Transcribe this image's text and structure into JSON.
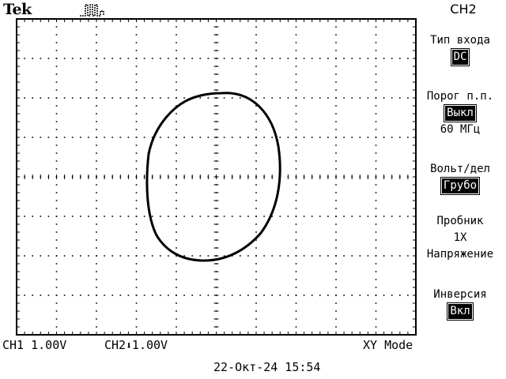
{
  "header": {
    "brand": "Tek"
  },
  "icons": {
    "trigger": "pulse-trigger-icon",
    "ground": "ground-arrow-icon"
  },
  "menu": {
    "title": "CH2",
    "items": [
      {
        "label": "Тип входа",
        "value": "DC",
        "value_highlight": true
      },
      {
        "label": "Порог п.п.",
        "value": "Выкл",
        "value_highlight": true,
        "extra": "60 МГц"
      },
      {
        "label": "Вольт/дел",
        "value": "Грубо",
        "value_highlight": true
      },
      {
        "label": "Пробник",
        "value": "1X",
        "value_highlight": false,
        "extra": "Напряжение"
      },
      {
        "label": "Инверсия",
        "value": "Вкл",
        "value_highlight": true
      }
    ]
  },
  "status": {
    "ch1": "CH1  1.00V",
    "ch2_label": "CH2",
    "ch2_value": "1.00V",
    "mode": "XY Mode"
  },
  "timestamp": "22-Окт-24 15:54",
  "colors": {
    "background": "#ffffff",
    "trace": "#000000",
    "graticule": "#000000"
  }
}
